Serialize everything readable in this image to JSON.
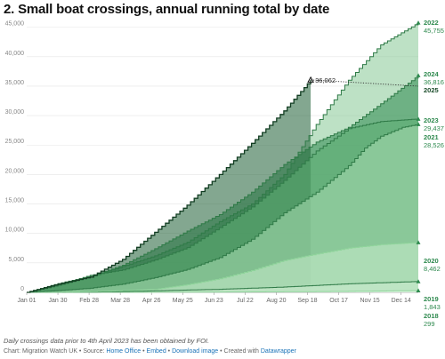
{
  "title": "2. Small boat crossings, annual running total by date",
  "footnote": "Daily crossings data prior to 4th April 2023 has been obtained by FOI.",
  "credits": {
    "prefix": "Chart: Migration Watch UK • Source: ",
    "source_link": "Home Office",
    "sep1": " • ",
    "embed_link": "Embed",
    "sep2": " • ",
    "download_link": "Download image",
    "sep3": " • Created with ",
    "datawrapper_link": "Datawrapper"
  },
  "chart_data": {
    "type": "area",
    "title": "2. Small boat crossings, annual running total by date",
    "xlabel": "",
    "ylabel": "",
    "ylim": [
      0,
      46000
    ],
    "yticks": [
      0,
      5000,
      10000,
      15000,
      20000,
      25000,
      30000,
      35000,
      40000,
      45000
    ],
    "ytick_labels": [
      "0",
      "5,000",
      "10,000",
      "15,000",
      "20,000",
      "25,000",
      "30,000",
      "35,000",
      "40,000",
      "45,000"
    ],
    "xlim": [
      1,
      365
    ],
    "xticks": [
      1,
      30,
      59,
      88,
      117,
      146,
      175,
      204,
      233,
      262,
      291,
      320,
      349
    ],
    "xtick_labels": [
      "Jan 01",
      "Jan 30",
      "Feb 28",
      "Mar 28",
      "Apr 26",
      "May 25",
      "Jun 23",
      "Jul 22",
      "Aug 20",
      "Sep 18",
      "Oct 17",
      "Nov 15",
      "Dec 14"
    ],
    "grid": true,
    "colors": {
      "2018": "#dff5e3",
      "2020": "#c8eccc",
      "2021": "#a9ddb2",
      "2022": "#87c896",
      "2023": "#5fae74",
      "2024": "#2e8b4e",
      "2025": "#1d5e34"
    },
    "series": [
      {
        "name": "2018",
        "end_label": "299",
        "x": [
          1,
          100,
          200,
          300,
          365
        ],
        "values": [
          0,
          15,
          60,
          160,
          299
        ]
      },
      {
        "name": "2019",
        "end_label": "1,843",
        "x": [
          1,
          60,
          120,
          180,
          240,
          300,
          365
        ],
        "values": [
          0,
          40,
          250,
          520,
          900,
          1450,
          1843
        ]
      },
      {
        "name": "2020",
        "end_label": "8,462",
        "x": [
          1,
          60,
          120,
          150,
          180,
          210,
          240,
          270,
          300,
          330,
          365
        ],
        "values": [
          0,
          100,
          500,
          1300,
          2300,
          3700,
          5400,
          6500,
          7500,
          8100,
          8462
        ]
      },
      {
        "name": "2021",
        "end_label": "28,526",
        "x": [
          1,
          30,
          60,
          90,
          120,
          150,
          180,
          210,
          240,
          270,
          300,
          315,
          330,
          350,
          365
        ],
        "values": [
          0,
          300,
          700,
          1400,
          2500,
          3900,
          5900,
          9000,
          13500,
          17000,
          21500,
          24500,
          26500,
          28000,
          28526
        ]
      },
      {
        "name": "2022",
        "end_label": "45,755",
        "x": [
          1,
          30,
          60,
          90,
          120,
          150,
          180,
          210,
          240,
          270,
          300,
          330,
          365
        ],
        "values": [
          0,
          1200,
          2600,
          4400,
          6200,
          8500,
          12000,
          15000,
          20000,
          28500,
          36000,
          42000,
          45755
        ]
      },
      {
        "name": "2023",
        "end_label": "29,437",
        "x": [
          1,
          30,
          60,
          90,
          120,
          150,
          180,
          210,
          240,
          270,
          300,
          330,
          365
        ],
        "values": [
          0,
          1200,
          2900,
          3800,
          5500,
          7600,
          11000,
          14500,
          19000,
          24000,
          27800,
          29000,
          29437
        ]
      },
      {
        "name": "2024",
        "end_label": "36,816",
        "x": [
          1,
          30,
          60,
          90,
          120,
          150,
          180,
          210,
          240,
          270,
          300,
          330,
          365
        ],
        "values": [
          0,
          1500,
          2700,
          4600,
          7400,
          10400,
          13200,
          17000,
          21700,
          25500,
          28000,
          32000,
          36816
        ]
      },
      {
        "name": "2025",
        "end_label": "",
        "x": [
          1,
          30,
          60,
          90,
          120,
          150,
          180,
          210,
          240,
          265
        ],
        "values": [
          0,
          1400,
          2600,
          5600,
          10200,
          14800,
          20000,
          25300,
          30800,
          36062
        ]
      }
    ],
    "projection": {
      "label": "36,062",
      "from": [
        265,
        36062
      ],
      "to": [
        365,
        35000
      ],
      "style": "dotted"
    },
    "end_labels": [
      {
        "year": "2022",
        "value": "45,755"
      },
      {
        "year": "2024",
        "value": "36,816"
      },
      {
        "year": "2025",
        "value": ""
      },
      {
        "year": "2023",
        "value": "29,437"
      },
      {
        "year": "2021",
        "value": "28,526"
      },
      {
        "year": "2020",
        "value": "8,462"
      },
      {
        "year": "2019",
        "value": "1,843"
      },
      {
        "year": "2018",
        "value": "299"
      }
    ]
  }
}
